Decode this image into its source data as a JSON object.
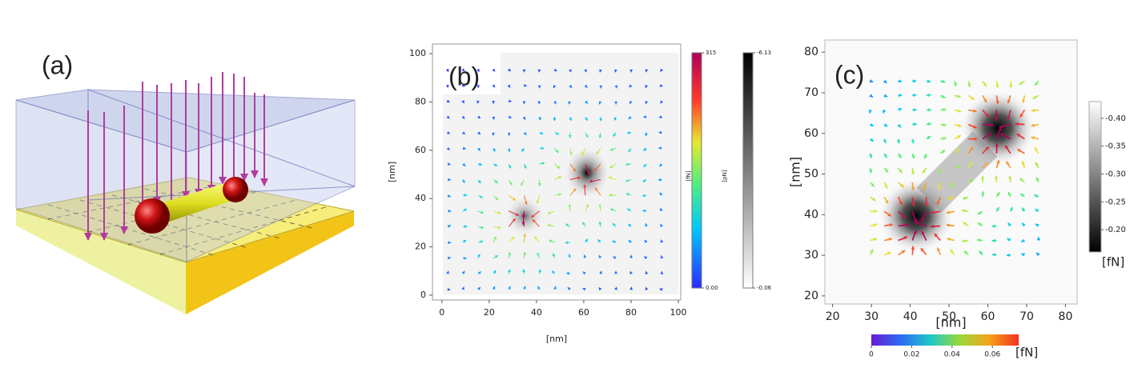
{
  "panel_a": {
    "label": "(a)"
  },
  "panel_b": {
    "label": "(b)",
    "xlim": [
      -4,
      101
    ],
    "ylim": [
      -2,
      104
    ],
    "xticks": [
      0,
      20,
      40,
      60,
      80,
      100
    ],
    "yticks": [
      0,
      20,
      40,
      60,
      80,
      100
    ],
    "xlabel": "[nm]",
    "ylabel": "[nm]",
    "colorbars": [
      {
        "label": "[fN]",
        "lim": [
          0,
          315
        ],
        "ticks": [
          {
            "value": 0,
            "label": "0.00"
          },
          315
        ]
      },
      {
        "label": "[pN]",
        "lim": [
          -0.06,
          -6.13
        ],
        "ticks": [
          -6.13,
          -0.06
        ]
      }
    ]
  },
  "panel_c": {
    "label": "(c)",
    "xlim": [
      18,
      83
    ],
    "ylim": [
      18,
      83
    ],
    "xticks": [
      20,
      30,
      40,
      50,
      60,
      70,
      80
    ],
    "yticks": [
      20,
      30,
      40,
      50,
      60,
      70,
      80
    ],
    "xlabel": "[nm]",
    "ylabel": "[nm]",
    "colorbar_gray": {
      "label": "[fN]",
      "lim": [
        -0.16,
        -0.43
      ],
      "ticks": [
        {
          "value": -0.2,
          "label": "-0.20"
        },
        -0.25,
        {
          "value": -0.3,
          "label": "-0.30"
        },
        -0.35,
        {
          "value": -0.4,
          "label": "-0.40"
        }
      ]
    },
    "colorbar_color": {
      "label": "[fN]",
      "lim": [
        0,
        0.073
      ],
      "ticks": [
        0,
        0.02,
        0.04,
        0.06
      ]
    }
  }
}
